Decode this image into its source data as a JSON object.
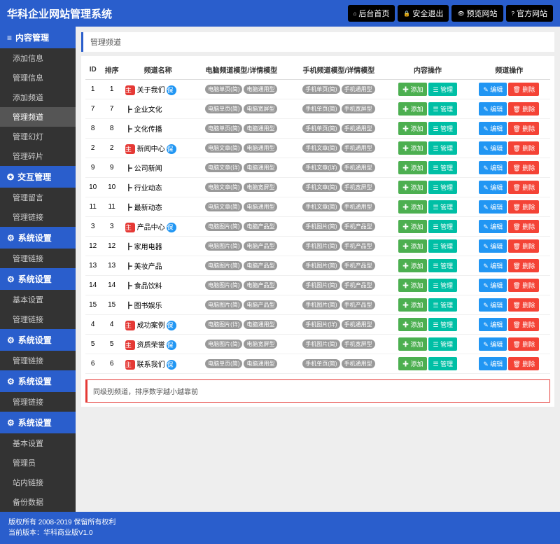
{
  "header": {
    "brand": "华科企业网站管理系统",
    "buttons": [
      {
        "icon": "⌂",
        "label": "后台首页"
      },
      {
        "icon": "🔒",
        "label": "安全退出"
      },
      {
        "icon": "👁",
        "label": "预览网站"
      },
      {
        "icon": "?",
        "label": "官方网站"
      }
    ]
  },
  "sidebar": [
    {
      "type": "cat",
      "icon": "≡",
      "label": "内容管理"
    },
    {
      "type": "item",
      "label": "添加信息"
    },
    {
      "type": "item",
      "label": "管理信息"
    },
    {
      "type": "item",
      "label": "添加频道"
    },
    {
      "type": "item",
      "label": "管理频道",
      "active": true
    },
    {
      "type": "item",
      "label": "管理幻灯"
    },
    {
      "type": "item",
      "label": "管理碎片"
    },
    {
      "type": "cat",
      "icon": "✪",
      "label": "交互管理"
    },
    {
      "type": "item",
      "label": "管理留言"
    },
    {
      "type": "item",
      "label": "管理链接"
    },
    {
      "type": "cat",
      "icon": "⚙",
      "label": "系统设置"
    },
    {
      "type": "item",
      "label": "管理链接"
    },
    {
      "type": "cat",
      "icon": "⚙",
      "label": "系统设置"
    },
    {
      "type": "item",
      "label": "基本设置"
    },
    {
      "type": "item",
      "label": "管理链接"
    },
    {
      "type": "cat",
      "icon": "⚙",
      "label": "系统设置"
    },
    {
      "type": "item",
      "label": "管理链接"
    },
    {
      "type": "cat",
      "icon": "⚙",
      "label": "系统设置"
    },
    {
      "type": "item",
      "label": "管理链接"
    },
    {
      "type": "cat",
      "icon": "⚙",
      "label": "系统设置"
    },
    {
      "type": "item",
      "label": "基本设置"
    },
    {
      "type": "item",
      "label": "管理员"
    },
    {
      "type": "item",
      "label": "站内链接"
    },
    {
      "type": "item",
      "label": "备份数据"
    }
  ],
  "panel_title": "管理频道",
  "columns": [
    "ID",
    "排序",
    "频道名称",
    "电脑频道模型/详情模型",
    "手机频道模型/详情模型",
    "内容操作",
    "频道操作"
  ],
  "btn_labels": {
    "add": "添加",
    "manage": "管理",
    "edit": "编辑",
    "delete": "删除"
  },
  "rows": [
    {
      "id": 1,
      "sort": 1,
      "main": true,
      "name": "关于我们",
      "save": true,
      "pc1": "电脑单页(简)",
      "pc2": "电脑通用型",
      "m1": "手机单页(简)",
      "m2": "手机通用型"
    },
    {
      "id": 7,
      "sort": 7,
      "main": false,
      "name": "┣ 企业文化",
      "save": false,
      "pc1": "电脑单页(简)",
      "pc2": "电脑宽屏型",
      "m1": "手机单页(简)",
      "m2": "手机宽屏型"
    },
    {
      "id": 8,
      "sort": 8,
      "main": false,
      "name": "┣ 文化传播",
      "save": false,
      "pc1": "电脑单页(简)",
      "pc2": "电脑通用型",
      "m1": "手机单页(简)",
      "m2": "手机通用型"
    },
    {
      "id": 2,
      "sort": 2,
      "main": true,
      "name": "新闻中心",
      "save": true,
      "pc1": "电脑文章(简)",
      "pc2": "电脑通用型",
      "m1": "手机文章(简)",
      "m2": "手机通用型"
    },
    {
      "id": 9,
      "sort": 9,
      "main": false,
      "name": "┣ 公司新闻",
      "save": false,
      "pc1": "电脑文章(详)",
      "pc2": "电脑通用型",
      "m1": "手机文章(详)",
      "m2": "手机通用型"
    },
    {
      "id": 10,
      "sort": 10,
      "main": false,
      "name": "┣ 行业动态",
      "save": false,
      "pc1": "电脑文章(简)",
      "pc2": "电脑宽屏型",
      "m1": "手机文章(简)",
      "m2": "手机宽屏型"
    },
    {
      "id": 11,
      "sort": 11,
      "main": false,
      "name": "┣ 最新动态",
      "save": false,
      "pc1": "电脑文章(简)",
      "pc2": "电脑通用型",
      "m1": "手机文章(简)",
      "m2": "手机通用型"
    },
    {
      "id": 3,
      "sort": 3,
      "main": true,
      "name": "产品中心",
      "save": true,
      "pc1": "电脑图片(简)",
      "pc2": "电脑产品型",
      "m1": "手机图片(简)",
      "m2": "手机产品型"
    },
    {
      "id": 12,
      "sort": 12,
      "main": false,
      "name": "┣ 家用电器",
      "save": false,
      "pc1": "电脑图片(简)",
      "pc2": "电脑产品型",
      "m1": "手机图片(简)",
      "m2": "手机产品型"
    },
    {
      "id": 13,
      "sort": 13,
      "main": false,
      "name": "┣ 美妆产品",
      "save": false,
      "pc1": "电脑图片(简)",
      "pc2": "电脑产品型",
      "m1": "手机图片(简)",
      "m2": "手机产品型"
    },
    {
      "id": 14,
      "sort": 14,
      "main": false,
      "name": "┣ 食品饮料",
      "save": false,
      "pc1": "电脑图片(简)",
      "pc2": "电脑产品型",
      "m1": "手机图片(简)",
      "m2": "手机产品型"
    },
    {
      "id": 15,
      "sort": 15,
      "main": false,
      "name": "┣ 图书娱乐",
      "save": false,
      "pc1": "电脑图片(简)",
      "pc2": "电脑产品型",
      "m1": "手机图片(简)",
      "m2": "手机产品型"
    },
    {
      "id": 4,
      "sort": 4,
      "main": true,
      "name": "成功案例",
      "save": true,
      "pc1": "电脑图片(详)",
      "pc2": "电脑通用型",
      "m1": "手机图片(详)",
      "m2": "手机通用型"
    },
    {
      "id": 5,
      "sort": 5,
      "main": true,
      "name": "资质荣誉",
      "save": true,
      "pc1": "电脑图片(简)",
      "pc2": "电脑宽屏型",
      "m1": "手机图片(简)",
      "m2": "手机宽屏型"
    },
    {
      "id": 6,
      "sort": 6,
      "main": true,
      "name": "联系我们",
      "save": true,
      "pc1": "电脑单页(简)",
      "pc2": "电脑通用型",
      "m1": "手机单页(简)",
      "m2": "手机通用型"
    }
  ],
  "tip": "同级别频道，排序数字越小越靠前",
  "footer": {
    "line1": "版权所有 2008-2019 保留所有权利",
    "line2": "当前版本：华科商业版V1.0"
  }
}
